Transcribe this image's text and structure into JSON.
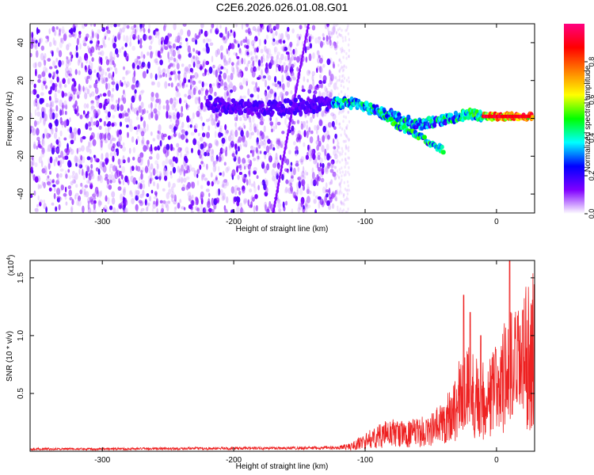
{
  "figure_title": "C2E6.2026.026.01.08.G01",
  "chart_data": [
    {
      "type": "heatmap",
      "panel": "spectrogram",
      "xlabel": "Height of straight line (km)",
      "ylabel": "Frequency (Hz)",
      "xlim": [
        -355,
        29
      ],
      "ylim": [
        -50,
        50
      ],
      "xticks": [
        -300,
        -200,
        -100,
        0
      ],
      "yticks": [
        -40,
        -20,
        0,
        20,
        40
      ],
      "noise_region_x": [
        -355,
        -122
      ],
      "signal_band": [
        {
          "x": -220,
          "y": 8
        },
        {
          "x": -200,
          "y": 6
        },
        {
          "x": -180,
          "y": 5
        },
        {
          "x": -160,
          "y": 6
        },
        {
          "x": -140,
          "y": 7
        },
        {
          "x": -125,
          "y": 8
        },
        {
          "x": -110,
          "y": 8
        },
        {
          "x": -100,
          "y": 6
        },
        {
          "x": -90,
          "y": 4
        },
        {
          "x": -80,
          "y": 2
        },
        {
          "x": -70,
          "y": -1
        },
        {
          "x": -60,
          "y": -3
        },
        {
          "x": -50,
          "y": -2
        },
        {
          "x": -40,
          "y": -1
        },
        {
          "x": -30,
          "y": 1
        },
        {
          "x": -20,
          "y": 2
        },
        {
          "x": -10,
          "y": 1
        },
        {
          "x": 0,
          "y": 1
        },
        {
          "x": 10,
          "y": 1
        },
        {
          "x": 20,
          "y": 1
        },
        {
          "x": 28,
          "y": 1
        }
      ],
      "descending_branch": [
        {
          "x": -90,
          "y": 3
        },
        {
          "x": -75,
          "y": -4
        },
        {
          "x": -60,
          "y": -9
        },
        {
          "x": -45,
          "y": -15
        },
        {
          "x": -40,
          "y": -17
        }
      ],
      "peak_region_x": [
        -10,
        25
      ],
      "colorbar": {
        "label": "Normalized spectral amplitude",
        "range": [
          0,
          1
        ],
        "ticks": [
          "0.0",
          "0.2",
          "0.4",
          "0.6",
          "0.8"
        ],
        "colormap": [
          "#ffffff",
          "#8000ff",
          "#0000ff",
          "#00ffff",
          "#00ff00",
          "#ffff00",
          "#ff8000",
          "#ff0000",
          "#ff0080"
        ]
      }
    },
    {
      "type": "line",
      "panel": "snr",
      "xlabel": "Height of straight line (km)",
      "ylabel": "SNR (10 * v/v)",
      "scale_label_base": "(x10",
      "scale_label_exp": "4",
      "scale_label_end": ")",
      "xlim": [
        -355,
        29
      ],
      "ylim": [
        0,
        1.65
      ],
      "xticks": [
        -300,
        -200,
        -100,
        0
      ],
      "yticks": [
        0.5,
        1.0,
        1.5
      ],
      "ytick_labels": [
        "0.5",
        "1.0",
        "1.5"
      ],
      "series": [
        {
          "color": "#ee2222",
          "envelope_x": [
            -355,
            -300,
            -200,
            -120,
            -110,
            -100,
            -90,
            -80,
            -70,
            -60,
            -50,
            -40,
            -30,
            -25,
            -20,
            -15,
            -10,
            -5,
            0,
            5,
            10,
            15,
            20,
            25,
            29
          ],
          "envelope_y": [
            0.02,
            0.02,
            0.025,
            0.03,
            0.06,
            0.12,
            0.18,
            0.22,
            0.2,
            0.22,
            0.25,
            0.35,
            0.55,
            0.75,
            0.72,
            0.65,
            0.6,
            0.65,
            0.75,
            0.85,
            0.95,
            0.95,
            1.05,
            1.15,
            1.2
          ],
          "spikes": [
            {
              "x": -25,
              "y": 1.35
            },
            {
              "x": -20,
              "y": 1.2
            },
            {
              "x": -12,
              "y": 1.0
            },
            {
              "x": 10,
              "y": 1.68
            },
            {
              "x": 12,
              "y": 0.32
            },
            {
              "x": 20,
              "y": 1.22
            }
          ]
        }
      ]
    }
  ]
}
